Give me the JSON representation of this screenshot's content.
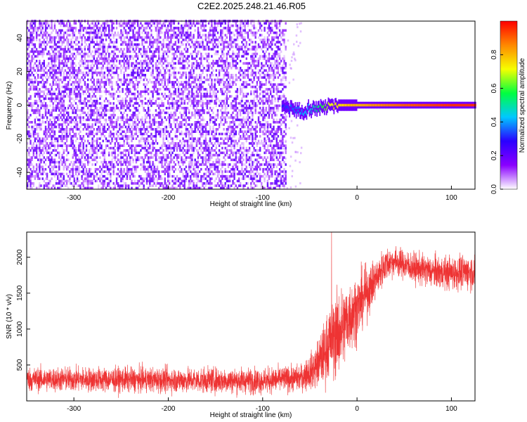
{
  "title": "C2E2.2025.248.21.46.R05",
  "colors": {
    "line": "#ee3333",
    "colormap": [
      "#ffffff",
      "#8a00ff",
      "#2a00ff",
      "#00c8ff",
      "#00ff40",
      "#f6ff00",
      "#ff8800",
      "#ff0000"
    ]
  },
  "chart_data": [
    {
      "type": "heatmap",
      "title": "C2E2.2025.248.21.46.R05",
      "xlabel": "Height of straight line (km)",
      "ylabel": "Frequency (Hz)",
      "xlim": [
        -350,
        125
      ],
      "ylim": [
        -50,
        50
      ],
      "xticks": [
        -300,
        -200,
        -100,
        0,
        100
      ],
      "yticks": [
        -40,
        -20,
        0,
        20,
        40
      ],
      "grid": false,
      "noise_region_x": [
        -350,
        -75
      ],
      "noise_amplitude_typical": 0.2,
      "carrier": {
        "x": [
          -80,
          -70,
          -60,
          -50,
          -40,
          -30,
          -20,
          -10,
          0,
          20,
          50,
          100,
          125
        ],
        "frequency_hz": [
          0,
          -2,
          -4,
          -3,
          -2,
          0,
          0,
          0,
          0,
          0,
          0,
          0,
          0
        ],
        "amplitude": [
          0.3,
          0.35,
          0.4,
          0.45,
          0.55,
          0.7,
          0.75,
          0.8,
          0.8,
          0.85,
          0.9,
          0.95,
          0.95
        ]
      },
      "colorbar": {
        "label": "Normalized spectral amplitude",
        "range": [
          0,
          1
        ],
        "ticks": [
          0.0,
          0.2,
          0.4,
          0.6,
          0.8
        ],
        "tick_labels": [
          "0.0",
          "0.2",
          "0.4",
          "0.6",
          "0.8"
        ]
      }
    },
    {
      "type": "line",
      "xlabel": "Height of straight line (km)",
      "ylabel": "SNR (10 * v/v)",
      "xlim": [
        -350,
        125
      ],
      "ylim": [
        0,
        2350
      ],
      "xticks": [
        -300,
        -200,
        -100,
        0,
        100
      ],
      "yticks": [
        500,
        1000,
        1500,
        2000
      ],
      "grid": false,
      "series": [
        {
          "mean_profile": {
            "x": [
              -350,
              -300,
              -200,
              -100,
              -60,
              -45,
              -35,
              -30,
              -25,
              -15,
              -10,
              0,
              10,
              20,
              30,
              40,
              50,
              60,
              80,
              100,
              125
            ],
            "y": [
              300,
              300,
              290,
              280,
              320,
              450,
              650,
              800,
              900,
              1000,
              1150,
              1300,
              1500,
              1700,
              1900,
              1950,
              1900,
              1850,
              1800,
              1780,
              1800
            ]
          },
          "spread_profile": {
            "x": [
              -350,
              -60,
              -45,
              -30,
              -20,
              0,
              20,
              40,
              80,
              125
            ],
            "y": [
              150,
              160,
              250,
              450,
              550,
              400,
              250,
              180,
              200,
              220
            ]
          },
          "max_spike": {
            "x": -27,
            "y": 2350
          }
        }
      ]
    }
  ]
}
